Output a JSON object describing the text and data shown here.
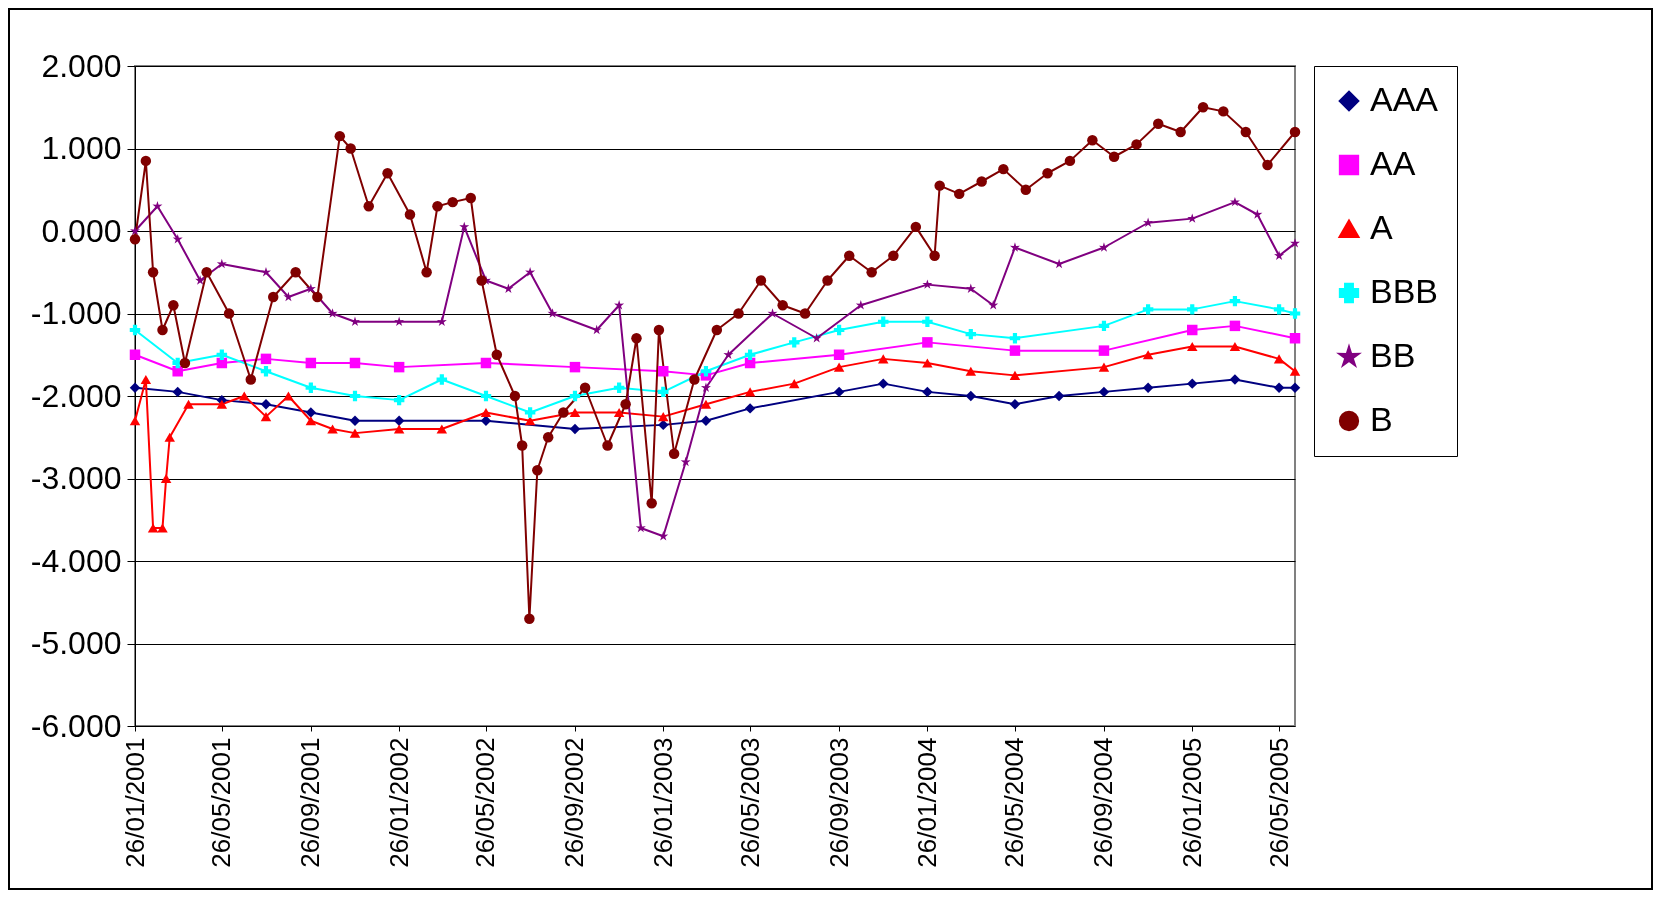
{
  "chart_data": {
    "type": "line",
    "grid": "y",
    "legend": "right",
    "line_style": "solid",
    "xlim": [
      "2001-01-26",
      "2005-06-17"
    ],
    "xticks": [
      {
        "value": "2001-01-26",
        "label": "26/01/2001"
      },
      {
        "value": "2001-05-26",
        "label": "26/05/2001"
      },
      {
        "value": "2001-09-26",
        "label": "26/09/2001"
      },
      {
        "value": "2002-01-26",
        "label": "26/01/2002"
      },
      {
        "value": "2002-05-26",
        "label": "26/05/2002"
      },
      {
        "value": "2002-09-26",
        "label": "26/09/2002"
      },
      {
        "value": "2003-01-26",
        "label": "26/01/2003"
      },
      {
        "value": "2003-05-26",
        "label": "26/05/2003"
      },
      {
        "value": "2003-09-26",
        "label": "26/09/2003"
      },
      {
        "value": "2004-01-26",
        "label": "26/01/2004"
      },
      {
        "value": "2004-05-26",
        "label": "26/05/2004"
      },
      {
        "value": "2004-09-26",
        "label": "26/09/2004"
      },
      {
        "value": "2005-01-26",
        "label": "26/01/2005"
      },
      {
        "value": "2005-05-26",
        "label": "26/05/2005"
      }
    ],
    "ylim": [
      -6,
      2
    ],
    "yticks": [
      {
        "value": 2,
        "label": "2.000"
      },
      {
        "value": 1,
        "label": "1.000"
      },
      {
        "value": 0,
        "label": "0.000"
      },
      {
        "value": -1,
        "label": "-1.000"
      },
      {
        "value": -2,
        "label": "-2.000"
      },
      {
        "value": -3,
        "label": "-3.000"
      },
      {
        "value": -4,
        "label": "-4.000"
      },
      {
        "value": -5,
        "label": "-5.000"
      },
      {
        "value": -6,
        "label": "-6.000"
      }
    ],
    "series": [
      {
        "name": "AAA",
        "color": "#000080",
        "marker": "diamond",
        "x": [
          "2001-01-26",
          "2001-03-26",
          "2001-05-26",
          "2001-07-26",
          "2001-09-26",
          "2001-11-26",
          "2002-01-26",
          "2002-05-26",
          "2002-09-26",
          "2003-01-26",
          "2003-03-26",
          "2003-05-26",
          "2003-09-26",
          "2003-11-26",
          "2004-01-26",
          "2004-03-26",
          "2004-05-26",
          "2004-07-26",
          "2004-09-26",
          "2004-11-26",
          "2005-01-26",
          "2005-03-26",
          "2005-05-26",
          "2005-06-17"
        ],
        "values": [
          -1.9,
          -1.95,
          -2.05,
          -2.1,
          -2.2,
          -2.3,
          -2.3,
          -2.3,
          -2.4,
          -2.35,
          -2.3,
          -2.15,
          -1.95,
          -1.85,
          -1.95,
          -2.0,
          -2.1,
          -2.0,
          -1.95,
          -1.9,
          -1.85,
          -1.8,
          -1.9,
          -1.9
        ]
      },
      {
        "name": "AA",
        "color": "#ff00ff",
        "marker": "square",
        "x": [
          "2001-01-26",
          "2001-03-26",
          "2001-05-26",
          "2001-07-26",
          "2001-09-26",
          "2001-11-26",
          "2002-01-26",
          "2002-05-26",
          "2002-09-26",
          "2003-01-26",
          "2003-03-26",
          "2003-05-26",
          "2003-09-26",
          "2004-01-26",
          "2004-05-26",
          "2004-09-26",
          "2005-01-26",
          "2005-03-26",
          "2005-06-17"
        ],
        "values": [
          -1.5,
          -1.7,
          -1.6,
          -1.55,
          -1.6,
          -1.6,
          -1.65,
          -1.6,
          -1.65,
          -1.7,
          -1.75,
          -1.6,
          -1.5,
          -1.35,
          -1.45,
          -1.45,
          -1.2,
          -1.15,
          -1.3
        ]
      },
      {
        "name": "A",
        "color": "#ff0000",
        "marker": "triangle",
        "x": [
          "2001-01-26",
          "2001-02-10",
          "2001-02-20",
          "2001-03-05",
          "2001-03-10",
          "2001-03-15",
          "2001-04-10",
          "2001-05-26",
          "2001-06-26",
          "2001-07-26",
          "2001-08-26",
          "2001-09-26",
          "2001-10-26",
          "2001-11-26",
          "2002-01-26",
          "2002-03-26",
          "2002-05-26",
          "2002-07-26",
          "2002-09-26",
          "2002-11-26",
          "2003-01-26",
          "2003-03-26",
          "2003-05-26",
          "2003-07-26",
          "2003-09-26",
          "2003-11-26",
          "2004-01-26",
          "2004-03-26",
          "2004-05-26",
          "2004-09-26",
          "2004-11-26",
          "2005-01-26",
          "2005-03-26",
          "2005-05-26",
          "2005-06-17"
        ],
        "values": [
          -2.3,
          -1.8,
          -3.6,
          -3.6,
          -3.0,
          -2.5,
          -2.1,
          -2.1,
          -2.0,
          -2.25,
          -2.0,
          -2.3,
          -2.4,
          -2.45,
          -2.4,
          -2.4,
          -2.2,
          -2.3,
          -2.2,
          -2.2,
          -2.25,
          -2.1,
          -1.95,
          -1.85,
          -1.65,
          -1.55,
          -1.6,
          -1.7,
          -1.75,
          -1.65,
          -1.5,
          -1.4,
          -1.4,
          -1.55,
          -1.7
        ]
      },
      {
        "name": "BBB",
        "color": "#00ffff",
        "marker": "cross",
        "x": [
          "2001-01-26",
          "2001-03-26",
          "2001-05-26",
          "2001-07-26",
          "2001-09-26",
          "2001-11-26",
          "2002-01-26",
          "2002-03-26",
          "2002-05-26",
          "2002-07-26",
          "2002-09-26",
          "2002-11-26",
          "2003-01-26",
          "2003-03-26",
          "2003-05-26",
          "2003-07-26",
          "2003-09-26",
          "2003-11-26",
          "2004-01-26",
          "2004-03-26",
          "2004-05-26",
          "2004-09-26",
          "2004-11-26",
          "2005-01-26",
          "2005-03-26",
          "2005-05-26",
          "2005-06-17"
        ],
        "values": [
          -1.2,
          -1.6,
          -1.5,
          -1.7,
          -1.9,
          -2.0,
          -2.05,
          -1.8,
          -2.0,
          -2.2,
          -2.0,
          -1.9,
          -1.95,
          -1.7,
          -1.5,
          -1.35,
          -1.2,
          -1.1,
          -1.1,
          -1.25,
          -1.3,
          -1.15,
          -0.95,
          -0.95,
          -0.85,
          -0.95,
          -1.0
        ]
      },
      {
        "name": "BB",
        "color": "#800080",
        "marker": "star",
        "x": [
          "2001-01-26",
          "2001-02-26",
          "2001-03-26",
          "2001-04-26",
          "2001-05-26",
          "2001-07-26",
          "2001-08-26",
          "2001-09-26",
          "2001-10-26",
          "2001-11-26",
          "2002-01-26",
          "2002-03-26",
          "2002-04-26",
          "2002-05-26",
          "2002-06-26",
          "2002-07-26",
          "2002-08-26",
          "2002-10-26",
          "2002-11-26",
          "2002-12-26",
          "2003-01-26",
          "2003-02-26",
          "2003-03-26",
          "2003-04-26",
          "2003-06-26",
          "2003-08-26",
          "2003-10-26",
          "2004-01-26",
          "2004-03-26",
          "2004-04-26",
          "2004-05-26",
          "2004-07-26",
          "2004-09-26",
          "2004-11-26",
          "2005-01-26",
          "2005-03-26",
          "2005-04-26",
          "2005-05-26",
          "2005-06-17"
        ],
        "values": [
          0.0,
          0.3,
          -0.1,
          -0.6,
          -0.4,
          -0.5,
          -0.8,
          -0.7,
          -1.0,
          -1.1,
          -1.1,
          -1.1,
          0.05,
          -0.6,
          -0.7,
          -0.5,
          -1.0,
          -1.2,
          -0.9,
          -3.6,
          -3.7,
          -2.8,
          -1.9,
          -1.5,
          -1.0,
          -1.3,
          -0.9,
          -0.65,
          -0.7,
          -0.9,
          -0.2,
          -0.4,
          -0.2,
          0.1,
          0.15,
          0.35,
          0.2,
          -0.3,
          -0.15
        ]
      },
      {
        "name": "B",
        "color": "#800000",
        "marker": "circle",
        "x": [
          "2001-01-26",
          "2001-02-10",
          "2001-02-20",
          "2001-03-05",
          "2001-03-20",
          "2001-04-05",
          "2001-05-05",
          "2001-06-05",
          "2001-07-05",
          "2001-08-05",
          "2001-09-05",
          "2001-10-05",
          "2001-11-05",
          "2001-11-20",
          "2001-12-15",
          "2002-01-10",
          "2002-02-10",
          "2002-03-05",
          "2002-03-20",
          "2002-04-10",
          "2002-05-05",
          "2002-05-20",
          "2002-06-10",
          "2002-07-05",
          "2002-07-15",
          "2002-07-25",
          "2002-08-05",
          "2002-08-20",
          "2002-09-10",
          "2002-10-10",
          "2002-11-10",
          "2002-12-05",
          "2002-12-20",
          "2003-01-10",
          "2003-01-20",
          "2003-02-10",
          "2003-03-10",
          "2003-04-10",
          "2003-05-10",
          "2003-06-10",
          "2003-07-10",
          "2003-08-10",
          "2003-09-10",
          "2003-10-10",
          "2003-11-10",
          "2003-12-10",
          "2004-01-10",
          "2004-02-05",
          "2004-02-12",
          "2004-03-10",
          "2004-04-10",
          "2004-05-10",
          "2004-06-10",
          "2004-07-10",
          "2004-08-10",
          "2004-09-10",
          "2004-10-10",
          "2004-11-10",
          "2004-12-10",
          "2005-01-10",
          "2005-02-10",
          "2005-03-10",
          "2005-04-10",
          "2005-05-10",
          "2005-06-17"
        ],
        "values": [
          -0.1,
          0.85,
          -0.5,
          -1.2,
          -0.9,
          -1.6,
          -0.5,
          -1.0,
          -1.8,
          -0.8,
          -0.5,
          -0.8,
          1.15,
          1.0,
          0.3,
          0.7,
          0.2,
          -0.5,
          0.3,
          0.35,
          0.4,
          -0.6,
          -1.5,
          -2.0,
          -2.6,
          -4.7,
          -2.9,
          -2.5,
          -2.2,
          -1.9,
          -2.6,
          -2.1,
          -1.3,
          -3.3,
          -1.2,
          -2.7,
          -1.8,
          -1.2,
          -1.0,
          -0.6,
          -0.9,
          -1.0,
          -0.6,
          -0.3,
          -0.5,
          -0.3,
          0.05,
          -0.3,
          0.55,
          0.45,
          0.6,
          0.75,
          0.5,
          0.7,
          0.85,
          1.1,
          0.9,
          1.05,
          1.3,
          1.2,
          1.5,
          1.45,
          1.2,
          0.8,
          1.2
        ]
      }
    ]
  }
}
